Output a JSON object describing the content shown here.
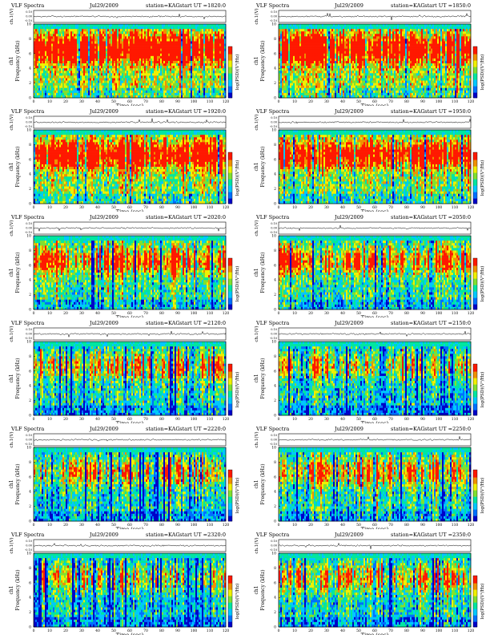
{
  "colors": {
    "scale": [
      "#0000c8",
      "#0070ff",
      "#00c8ff",
      "#00e6a0",
      "#80e030",
      "#f0f000",
      "#f09000",
      "#ff1800"
    ],
    "waveform_line": "#000000"
  },
  "common": {
    "title_left": "VLF Spectra",
    "station": "station=KAG",
    "time_label": "Time (sec)",
    "freq_label": "Frequency (kHz)",
    "ch1_label": "ch1",
    "wave_label": "ch.1(V)",
    "colorbar_label": "log(PSD)(V²/Hz)",
    "wave_ticks": [
      "0.10",
      "0.00",
      "-0.10"
    ]
  },
  "chart_data": [
    {
      "type": "heatmap",
      "title_left": "VLF Spectra",
      "date": "Jul29/2009",
      "station": "station=KAG",
      "start_ut": "start UT =1820:0",
      "x_ticks": [
        0,
        10,
        20,
        30,
        40,
        50,
        60,
        70,
        80,
        90,
        100,
        110,
        120
      ],
      "y_ticks": [
        0,
        2,
        4,
        6,
        8,
        10
      ],
      "xlim": [
        0,
        120
      ],
      "ylim": [
        0,
        10
      ],
      "xlabel": "Time (sec)",
      "ylabel": "Frequency (kHz)",
      "colorbar_label": "log(PSD)(V²/Hz)",
      "activity": 0.9
    },
    {
      "type": "heatmap",
      "title_left": "VLF Spectra",
      "date": "Jul29/2009",
      "station": "station=KAG",
      "start_ut": "start UT =1850:0",
      "x_ticks": [
        0,
        10,
        20,
        30,
        40,
        50,
        60,
        70,
        80,
        90,
        100,
        110,
        120
      ],
      "y_ticks": [
        0,
        2,
        4,
        6,
        8,
        10
      ],
      "xlim": [
        0,
        120
      ],
      "ylim": [
        0,
        10
      ],
      "xlabel": "Time (sec)",
      "ylabel": "Frequency (kHz)",
      "colorbar_label": "log(PSD)(V²/Hz)",
      "activity": 0.88
    },
    {
      "type": "heatmap",
      "title_left": "VLF Spectra",
      "date": "Jul29/2009",
      "station": "station=KAG",
      "start_ut": "start UT =1920:0",
      "x_ticks": [
        0,
        10,
        20,
        30,
        40,
        50,
        60,
        70,
        80,
        90,
        100,
        110,
        120
      ],
      "y_ticks": [
        0,
        2,
        4,
        6,
        8,
        10
      ],
      "xlim": [
        0,
        120
      ],
      "ylim": [
        0,
        10
      ],
      "xlabel": "Time (sec)",
      "ylabel": "Frequency (kHz)",
      "colorbar_label": "log(PSD)(V²/Hz)",
      "activity": 0.8
    },
    {
      "type": "heatmap",
      "title_left": "VLF Spectra",
      "date": "Jul29/2009",
      "station": "station=KAG",
      "start_ut": "start UT =1950:0",
      "x_ticks": [
        0,
        10,
        20,
        30,
        40,
        50,
        60,
        70,
        80,
        90,
        100,
        110,
        120
      ],
      "y_ticks": [
        0,
        2,
        4,
        6,
        8,
        10
      ],
      "xlim": [
        0,
        120
      ],
      "ylim": [
        0,
        10
      ],
      "xlabel": "Time (sec)",
      "ylabel": "Frequency (kHz)",
      "colorbar_label": "log(PSD)(V²/Hz)",
      "activity": 0.72
    },
    {
      "type": "heatmap",
      "title_left": "VLF Spectra",
      "date": "Jul29/2009",
      "station": "station=KAG",
      "start_ut": "start UT =2020:0",
      "x_ticks": [
        0,
        10,
        20,
        30,
        40,
        50,
        60,
        70,
        80,
        90,
        100,
        110,
        120
      ],
      "y_ticks": [
        0,
        2,
        4,
        6,
        8,
        10
      ],
      "xlim": [
        0,
        120
      ],
      "ylim": [
        0,
        10
      ],
      "xlabel": "Time (sec)",
      "ylabel": "Frequency (kHz)",
      "colorbar_label": "log(PSD)(V²/Hz)",
      "activity": 0.55
    },
    {
      "type": "heatmap",
      "title_left": "VLF Spectra",
      "date": "Jul29/2009",
      "station": "station=KAG",
      "start_ut": "start UT =2050:0",
      "x_ticks": [
        0,
        10,
        20,
        30,
        40,
        50,
        60,
        70,
        80,
        90,
        100,
        110,
        120
      ],
      "y_ticks": [
        0,
        2,
        4,
        6,
        8,
        10
      ],
      "xlim": [
        0,
        120
      ],
      "ylim": [
        0,
        10
      ],
      "xlabel": "Time (sec)",
      "ylabel": "Frequency (kHz)",
      "colorbar_label": "log(PSD)(V²/Hz)",
      "activity": 0.5
    },
    {
      "type": "heatmap",
      "title_left": "VLF Spectra",
      "date": "Jul29/2009",
      "station": "station=KAG",
      "start_ut": "start UT =2120:0",
      "x_ticks": [
        0,
        10,
        20,
        30,
        40,
        50,
        60,
        70,
        80,
        90,
        100,
        110,
        120
      ],
      "y_ticks": [
        0,
        2,
        4,
        6,
        8,
        10
      ],
      "xlim": [
        0,
        120
      ],
      "ylim": [
        0,
        10
      ],
      "xlabel": "Time (sec)",
      "ylabel": "Frequency (kHz)",
      "colorbar_label": "log(PSD)(V²/Hz)",
      "activity": 0.42
    },
    {
      "type": "heatmap",
      "title_left": "VLF Spectra",
      "date": "Jul29/2009",
      "station": "station=KAG",
      "start_ut": "start UT =2150:0",
      "x_ticks": [
        0,
        10,
        20,
        30,
        40,
        50,
        60,
        70,
        80,
        90,
        100,
        110,
        120
      ],
      "y_ticks": [
        0,
        2,
        4,
        6,
        8,
        10
      ],
      "xlim": [
        0,
        120
      ],
      "ylim": [
        0,
        10
      ],
      "xlabel": "Time (sec)",
      "ylabel": "Frequency (kHz)",
      "colorbar_label": "log(PSD)(V²/Hz)",
      "activity": 0.38
    },
    {
      "type": "heatmap",
      "title_left": "VLF Spectra",
      "date": "Jul29/2009",
      "station": "station=KAG",
      "start_ut": "start UT =2220:0",
      "x_ticks": [
        0,
        10,
        20,
        30,
        40,
        50,
        60,
        70,
        80,
        90,
        100,
        110,
        120
      ],
      "y_ticks": [
        0,
        2,
        4,
        6,
        8,
        10
      ],
      "xlim": [
        0,
        120
      ],
      "ylim": [
        0,
        10
      ],
      "xlabel": "Time (sec)",
      "ylabel": "Frequency (kHz)",
      "colorbar_label": "log(PSD)(V²/Hz)",
      "activity": 0.4
    },
    {
      "type": "heatmap",
      "title_left": "VLF Spectra",
      "date": "Jul29/2009",
      "station": "station=KAG",
      "start_ut": "start UT =2250:0",
      "x_ticks": [
        0,
        10,
        20,
        30,
        40,
        50,
        60,
        70,
        80,
        90,
        100,
        110,
        120
      ],
      "y_ticks": [
        0,
        2,
        4,
        6,
        8,
        10
      ],
      "xlim": [
        0,
        120
      ],
      "ylim": [
        0,
        10
      ],
      "xlabel": "Time (sec)",
      "ylabel": "Frequency (kHz)",
      "colorbar_label": "log(PSD)(V²/Hz)",
      "activity": 0.45
    },
    {
      "type": "heatmap",
      "title_left": "VLF Spectra",
      "date": "Jul29/2009",
      "station": "station=KAG",
      "start_ut": "start UT =2320:0",
      "x_ticks": [
        0,
        10,
        20,
        30,
        40,
        50,
        60,
        70,
        80,
        90,
        100,
        110,
        120
      ],
      "y_ticks": [
        0,
        2,
        4,
        6,
        8,
        10
      ],
      "xlim": [
        0,
        120
      ],
      "ylim": [
        0,
        10
      ],
      "xlabel": "Time (sec)",
      "ylabel": "Frequency (kHz)",
      "colorbar_label": "log(PSD)(V²/Hz)",
      "activity": 0.35
    },
    {
      "type": "heatmap",
      "title_left": "VLF Spectra",
      "date": "Jul29/2009",
      "station": "station=KAG",
      "start_ut": "start UT =2350:0",
      "x_ticks": [
        0,
        10,
        20,
        30,
        40,
        50,
        60,
        70,
        80,
        90,
        100,
        110,
        120
      ],
      "y_ticks": [
        0,
        2,
        4,
        6,
        8,
        10
      ],
      "xlim": [
        0,
        120
      ],
      "ylim": [
        0,
        10
      ],
      "xlabel": "Time (sec)",
      "ylabel": "Frequency (kHz)",
      "colorbar_label": "log(PSD)(V²/Hz)",
      "activity": 0.42
    }
  ]
}
